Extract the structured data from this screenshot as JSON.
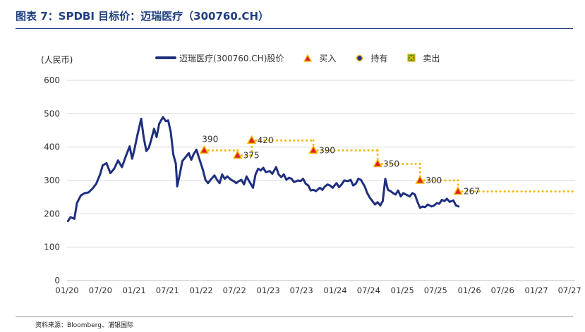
{
  "header": {
    "title": "图表 7：SPDBI 目标价：迈瑞医疗（300760.CH）"
  },
  "footer": {
    "source": "资料来源：Bloomberg、浦银国际"
  },
  "colors": {
    "price_line": "#1f2f7f",
    "buy_fill": "#e02020",
    "buy_border": "#f2b705",
    "target_dots": "#f2b705",
    "hold_fill": "#1f2f7f",
    "hold_border": "#f2b705",
    "sell_fill": "#3a9a3a",
    "sell_border": "#f2b705",
    "grid": "#d9d9d9",
    "axis_text": "#333333"
  },
  "chart_data": {
    "type": "line",
    "title": "SPDBI 目标价：迈瑞医疗（300760.CH）",
    "unit_label": "(人民币)",
    "ylabel": "人民币",
    "xlabel": "",
    "ylim": [
      0,
      600
    ],
    "yticks": [
      0,
      100,
      200,
      300,
      400,
      500,
      600
    ],
    "x_range": [
      "2020-01",
      "2027-07"
    ],
    "xtick_labels": [
      "01/20",
      "07/20",
      "01/21",
      "07/21",
      "01/22",
      "07/22",
      "01/23",
      "07/23",
      "01/24",
      "07/24",
      "01/25",
      "07/25",
      "01/26",
      "07/26",
      "01/27",
      "07/27"
    ],
    "grid": "horizontal",
    "legend": {
      "position": "top",
      "entries": [
        {
          "key": "price",
          "label": "迈瑞医疗(300760.CH)股价"
        },
        {
          "key": "buy",
          "label": "买入"
        },
        {
          "key": "hold",
          "label": "持有"
        },
        {
          "key": "sell",
          "label": "卖出"
        }
      ]
    },
    "price_series": {
      "name": "迈瑞医疗(300760.CH)股价",
      "points": [
        [
          "2020-01-06",
          178
        ],
        [
          "2020-01-20",
          190
        ],
        [
          "2020-02-10",
          185
        ],
        [
          "2020-02-24",
          232
        ],
        [
          "2020-03-16",
          255
        ],
        [
          "2020-04-06",
          262
        ],
        [
          "2020-04-27",
          264
        ],
        [
          "2020-05-18",
          275
        ],
        [
          "2020-06-08",
          290
        ],
        [
          "2020-06-29",
          318
        ],
        [
          "2020-07-13",
          345
        ],
        [
          "2020-08-03",
          352
        ],
        [
          "2020-08-24",
          322
        ],
        [
          "2020-09-14",
          335
        ],
        [
          "2020-10-05",
          360
        ],
        [
          "2020-10-26",
          340
        ],
        [
          "2020-11-16",
          372
        ],
        [
          "2020-12-07",
          402
        ],
        [
          "2020-12-21",
          365
        ],
        [
          "2021-01-04",
          398
        ],
        [
          "2021-01-18",
          435
        ],
        [
          "2021-02-08",
          485
        ],
        [
          "2021-02-22",
          428
        ],
        [
          "2021-03-08",
          388
        ],
        [
          "2021-03-22",
          398
        ],
        [
          "2021-04-05",
          425
        ],
        [
          "2021-04-19",
          455
        ],
        [
          "2021-05-03",
          430
        ],
        [
          "2021-05-17",
          470
        ],
        [
          "2021-06-07",
          490
        ],
        [
          "2021-06-21",
          478
        ],
        [
          "2021-07-05",
          480
        ],
        [
          "2021-07-19",
          445
        ],
        [
          "2021-08-02",
          378
        ],
        [
          "2021-08-16",
          350
        ],
        [
          "2021-08-23",
          282
        ],
        [
          "2021-09-06",
          318
        ],
        [
          "2021-09-20",
          358
        ],
        [
          "2021-10-11",
          372
        ],
        [
          "2021-10-25",
          382
        ],
        [
          "2021-11-08",
          362
        ],
        [
          "2021-11-22",
          380
        ],
        [
          "2021-12-06",
          392
        ],
        [
          "2021-12-20",
          368
        ],
        [
          "2022-01-10",
          332
        ],
        [
          "2022-01-24",
          302
        ],
        [
          "2022-02-07",
          292
        ],
        [
          "2022-02-21",
          302
        ],
        [
          "2022-03-14",
          315
        ],
        [
          "2022-03-28",
          302
        ],
        [
          "2022-04-11",
          292
        ],
        [
          "2022-04-25",
          318
        ],
        [
          "2022-05-09",
          305
        ],
        [
          "2022-05-23",
          312
        ],
        [
          "2022-06-13",
          302
        ],
        [
          "2022-06-27",
          298
        ],
        [
          "2022-07-11",
          292
        ],
        [
          "2022-07-25",
          298
        ],
        [
          "2022-08-08",
          302
        ],
        [
          "2022-08-22",
          288
        ],
        [
          "2022-09-05",
          312
        ],
        [
          "2022-09-19",
          298
        ],
        [
          "2022-10-10",
          278
        ],
        [
          "2022-10-24",
          318
        ],
        [
          "2022-11-07",
          335
        ],
        [
          "2022-11-21",
          330
        ],
        [
          "2022-12-05",
          338
        ],
        [
          "2022-12-19",
          325
        ],
        [
          "2023-01-09",
          328
        ],
        [
          "2023-01-23",
          320
        ],
        [
          "2023-02-13",
          340
        ],
        [
          "2023-02-27",
          318
        ],
        [
          "2023-03-13",
          310
        ],
        [
          "2023-03-27",
          318
        ],
        [
          "2023-04-10",
          302
        ],
        [
          "2023-04-24",
          308
        ],
        [
          "2023-05-08",
          305
        ],
        [
          "2023-05-22",
          295
        ],
        [
          "2023-06-12",
          300
        ],
        [
          "2023-06-26",
          298
        ],
        [
          "2023-07-10",
          305
        ],
        [
          "2023-07-24",
          290
        ],
        [
          "2023-08-07",
          285
        ],
        [
          "2023-08-21",
          270
        ],
        [
          "2023-09-04",
          272
        ],
        [
          "2023-09-18",
          268
        ],
        [
          "2023-10-09",
          278
        ],
        [
          "2023-10-23",
          272
        ],
        [
          "2023-11-06",
          282
        ],
        [
          "2023-11-20",
          288
        ],
        [
          "2023-12-04",
          285
        ],
        [
          "2023-12-18",
          278
        ],
        [
          "2024-01-08",
          292
        ],
        [
          "2024-01-22",
          280
        ],
        [
          "2024-02-05",
          288
        ],
        [
          "2024-02-19",
          300
        ],
        [
          "2024-03-11",
          298
        ],
        [
          "2024-03-25",
          302
        ],
        [
          "2024-04-08",
          285
        ],
        [
          "2024-04-22",
          290
        ],
        [
          "2024-05-06",
          305
        ],
        [
          "2024-05-20",
          302
        ],
        [
          "2024-06-10",
          282
        ],
        [
          "2024-06-24",
          262
        ],
        [
          "2024-07-08",
          248
        ],
        [
          "2024-07-22",
          238
        ],
        [
          "2024-08-05",
          228
        ],
        [
          "2024-08-19",
          235
        ],
        [
          "2024-09-02",
          225
        ],
        [
          "2024-09-16",
          238
        ],
        [
          "2024-09-30",
          305
        ],
        [
          "2024-10-14",
          272
        ],
        [
          "2024-10-28",
          268
        ],
        [
          "2024-11-11",
          262
        ],
        [
          "2024-11-25",
          258
        ],
        [
          "2024-12-09",
          270
        ],
        [
          "2024-12-23",
          252
        ],
        [
          "2025-01-06",
          262
        ],
        [
          "2025-01-20",
          258
        ],
        [
          "2025-02-10",
          252
        ],
        [
          "2025-02-24",
          262
        ],
        [
          "2025-03-10",
          258
        ],
        [
          "2025-03-24",
          236
        ],
        [
          "2025-04-07",
          218
        ],
        [
          "2025-04-21",
          222
        ],
        [
          "2025-05-05",
          220
        ],
        [
          "2025-05-19",
          228
        ],
        [
          "2025-06-09",
          222
        ],
        [
          "2025-06-23",
          225
        ],
        [
          "2025-07-07",
          232
        ],
        [
          "2025-07-21",
          230
        ],
        [
          "2025-08-04",
          242
        ],
        [
          "2025-08-18",
          238
        ],
        [
          "2025-09-01",
          245
        ],
        [
          "2025-09-15",
          236
        ],
        [
          "2025-10-06",
          240
        ],
        [
          "2025-10-20",
          225
        ],
        [
          "2025-11-03",
          222
        ]
      ]
    },
    "rating_events": [
      {
        "date": "2022-01-17",
        "rating": "buy",
        "target": 390,
        "label": "390",
        "until": "2022-07-18"
      },
      {
        "date": "2022-07-18",
        "rating": "buy",
        "target": 375,
        "label": "375",
        "until": "2022-10-03"
      },
      {
        "date": "2022-10-03",
        "rating": "buy",
        "target": 420,
        "label": "420",
        "until": "2023-09-04"
      },
      {
        "date": "2023-09-04",
        "rating": "buy",
        "target": 390,
        "label": "390",
        "until": "2024-08-19"
      },
      {
        "date": "2024-08-19",
        "rating": "buy",
        "target": 350,
        "label": "350",
        "until": "2025-04-07"
      },
      {
        "date": "2025-04-07",
        "rating": "buy",
        "target": 300,
        "label": "300",
        "until": "2025-10-31"
      },
      {
        "date": "2025-10-31",
        "rating": "buy",
        "target": 267,
        "label": "267",
        "until": "2027-07-31"
      }
    ]
  }
}
